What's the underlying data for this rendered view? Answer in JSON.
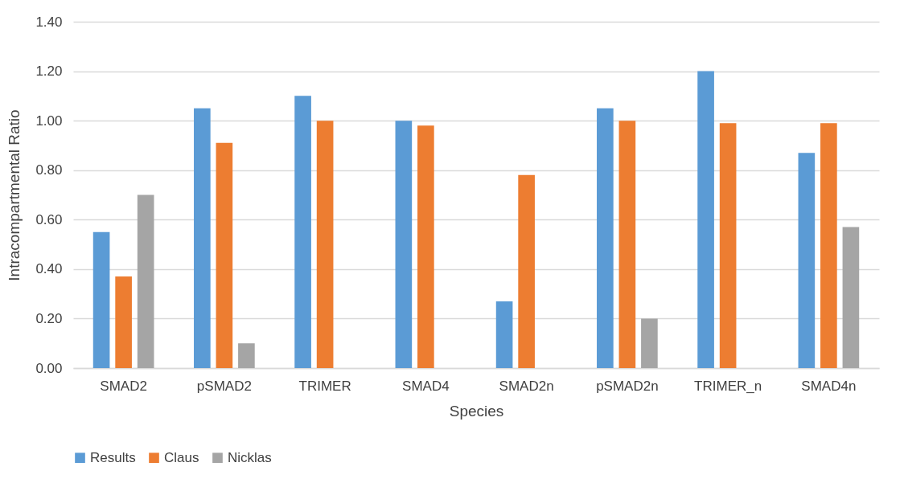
{
  "chart_data": {
    "type": "bar",
    "xlabel": "Species",
    "ylabel": "Intracompartmental Ratio",
    "categories": [
      "SMAD2",
      "pSMAD2",
      "TRIMER",
      "SMAD4",
      "SMAD2n",
      "pSMAD2n",
      "TRIMER_n",
      "SMAD4n"
    ],
    "series": [
      {
        "name": "Results",
        "color": "#5b9bd5",
        "values": [
          0.55,
          1.05,
          1.1,
          1.0,
          0.27,
          1.05,
          1.2,
          0.87
        ]
      },
      {
        "name": "Claus",
        "color": "#ed7d31",
        "values": [
          0.37,
          0.91,
          1.0,
          0.98,
          0.78,
          1.0,
          0.99,
          0.99
        ]
      },
      {
        "name": "Nicklas",
        "color": "#a5a5a5",
        "values": [
          0.7,
          0.1,
          null,
          null,
          null,
          0.2,
          null,
          0.57
        ]
      }
    ],
    "ylim": [
      0,
      1.4
    ],
    "yticks": [
      {
        "value": 0,
        "label": "0.00"
      },
      {
        "value": 0.2,
        "label": "0.20"
      },
      {
        "value": 0.4,
        "label": "0.40"
      },
      {
        "value": 0.6,
        "label": "0.60"
      },
      {
        "value": 0.8,
        "label": "0.80"
      },
      {
        "value": 1.0,
        "label": "1.00"
      },
      {
        "value": 1.2,
        "label": "1.20"
      },
      {
        "value": 1.4,
        "label": "1.40"
      }
    ],
    "grid": "y",
    "legend": "bottom"
  }
}
